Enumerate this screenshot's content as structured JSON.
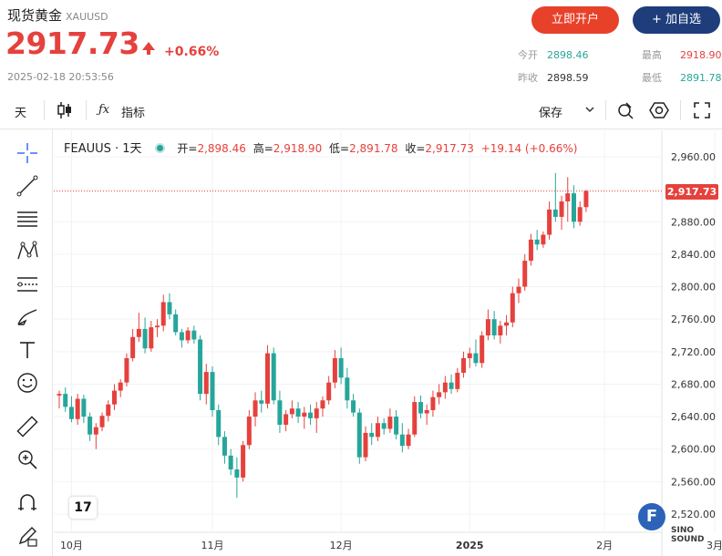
{
  "header": {
    "name": "现货黄金",
    "symbol": "XAUUSD",
    "price": "2917.73",
    "change_pct": "+0.66%",
    "timestamp": "2025-02-18 20:53:56",
    "open_account_label": "立即开户",
    "add_watch_label": "+ 加自选",
    "stats": {
      "open_label": "今开",
      "open_value": "2898.46",
      "prev_close_label": "昨收",
      "prev_close_value": "2898.59",
      "high_label": "最高",
      "high_value": "2918.90",
      "low_label": "最低",
      "low_value": "2891.78"
    }
  },
  "toolbar": {
    "interval_label": "天",
    "indicators_label": "指标",
    "save_label": "保存",
    "candles_icon": "candles-icon",
    "fx_icon": "fx-icon"
  },
  "legend": {
    "instrument": "FEAUUS · 1天",
    "open_label": "开=",
    "open": "2,898.46",
    "high_label": "高=",
    "high": "2,918.90",
    "low_label": "低=",
    "low": "2,891.78",
    "close_label": "收=",
    "close": "2,917.73",
    "change": "+19.14 (+0.66%)"
  },
  "last_price_tag": "2,917.73",
  "tv_logo": "17",
  "watermark": {
    "letter": "F",
    "text": "SINO SOUND"
  },
  "colors": {
    "up": "#e5413d",
    "down": "#26a69a",
    "accent": "#e8412a",
    "navy": "#1e3d7a"
  },
  "chart_data": {
    "type": "candlestick",
    "y_ticks": [
      "2,960.00",
      "2,920.00",
      "2,880.00",
      "2,840.00",
      "2,800.00",
      "2,760.00",
      "2,720.00",
      "2,680.00",
      "2,640.00",
      "2,600.00",
      "2,560.00",
      "2,520.00"
    ],
    "ylim": [
      2500,
      2980
    ],
    "x_ticks": [
      {
        "label": "10月",
        "index": 2
      },
      {
        "label": "11月",
        "index": 25
      },
      {
        "label": "12月",
        "index": 46
      },
      {
        "label": "2025",
        "index": 67
      },
      {
        "label": "2月",
        "index": 89
      },
      {
        "label": "3月",
        "index": 107
      }
    ],
    "last_price": 2917.73,
    "candles": [
      [
        2666,
        2672,
        2650,
        2668
      ],
      [
        2668,
        2676,
        2646,
        2652
      ],
      [
        2652,
        2665,
        2633,
        2637
      ],
      [
        2637,
        2668,
        2630,
        2662
      ],
      [
        2662,
        2667,
        2632,
        2640
      ],
      [
        2640,
        2645,
        2610,
        2618
      ],
      [
        2618,
        2632,
        2600,
        2627
      ],
      [
        2627,
        2645,
        2622,
        2641
      ],
      [
        2641,
        2660,
        2634,
        2655
      ],
      [
        2655,
        2680,
        2648,
        2672
      ],
      [
        2672,
        2686,
        2664,
        2682
      ],
      [
        2682,
        2718,
        2677,
        2712
      ],
      [
        2712,
        2748,
        2708,
        2738
      ],
      [
        2738,
        2768,
        2732,
        2748
      ],
      [
        2748,
        2762,
        2718,
        2724
      ],
      [
        2724,
        2758,
        2720,
        2750
      ],
      [
        2750,
        2760,
        2738,
        2752
      ],
      [
        2752,
        2790,
        2745,
        2781
      ],
      [
        2781,
        2792,
        2760,
        2766
      ],
      [
        2766,
        2772,
        2740,
        2744
      ],
      [
        2744,
        2748,
        2725,
        2734
      ],
      [
        2734,
        2750,
        2730,
        2746
      ],
      [
        2746,
        2752,
        2730,
        2735
      ],
      [
        2735,
        2740,
        2660,
        2668
      ],
      [
        2668,
        2705,
        2655,
        2695
      ],
      [
        2695,
        2702,
        2640,
        2648
      ],
      [
        2648,
        2655,
        2605,
        2615
      ],
      [
        2615,
        2622,
        2582,
        2592
      ],
      [
        2592,
        2600,
        2568,
        2575
      ],
      [
        2575,
        2590,
        2540,
        2565
      ],
      [
        2565,
        2610,
        2560,
        2605
      ],
      [
        2605,
        2648,
        2600,
        2640
      ],
      [
        2640,
        2670,
        2628,
        2660
      ],
      [
        2660,
        2672,
        2645,
        2656
      ],
      [
        2656,
        2728,
        2650,
        2718
      ],
      [
        2718,
        2725,
        2655,
        2660
      ],
      [
        2660,
        2672,
        2620,
        2630
      ],
      [
        2630,
        2648,
        2622,
        2643
      ],
      [
        2643,
        2660,
        2638,
        2650
      ],
      [
        2650,
        2658,
        2632,
        2640
      ],
      [
        2640,
        2652,
        2625,
        2645
      ],
      [
        2645,
        2655,
        2630,
        2638
      ],
      [
        2638,
        2658,
        2620,
        2650
      ],
      [
        2650,
        2665,
        2640,
        2660
      ],
      [
        2660,
        2690,
        2655,
        2682
      ],
      [
        2682,
        2722,
        2675,
        2712
      ],
      [
        2712,
        2725,
        2680,
        2688
      ],
      [
        2688,
        2700,
        2650,
        2660
      ],
      [
        2660,
        2668,
        2640,
        2645
      ],
      [
        2645,
        2650,
        2582,
        2590
      ],
      [
        2590,
        2628,
        2585,
        2620
      ],
      [
        2620,
        2632,
        2605,
        2615
      ],
      [
        2615,
        2640,
        2610,
        2632
      ],
      [
        2632,
        2638,
        2618,
        2625
      ],
      [
        2625,
        2650,
        2620,
        2640
      ],
      [
        2640,
        2648,
        2612,
        2618
      ],
      [
        2618,
        2632,
        2596,
        2604
      ],
      [
        2604,
        2625,
        2600,
        2618
      ],
      [
        2618,
        2665,
        2615,
        2658
      ],
      [
        2658,
        2666,
        2638,
        2644
      ],
      [
        2644,
        2655,
        2630,
        2648
      ],
      [
        2648,
        2672,
        2640,
        2664
      ],
      [
        2664,
        2680,
        2655,
        2670
      ],
      [
        2670,
        2690,
        2662,
        2682
      ],
      [
        2682,
        2692,
        2668,
        2674
      ],
      [
        2674,
        2700,
        2670,
        2694
      ],
      [
        2694,
        2720,
        2688,
        2712
      ],
      [
        2712,
        2725,
        2700,
        2718
      ],
      [
        2718,
        2735,
        2702,
        2706
      ],
      [
        2706,
        2745,
        2700,
        2740
      ],
      [
        2740,
        2772,
        2734,
        2760
      ],
      [
        2760,
        2770,
        2735,
        2740
      ],
      [
        2740,
        2758,
        2730,
        2752
      ],
      [
        2752,
        2765,
        2740,
        2756
      ],
      [
        2756,
        2800,
        2750,
        2792
      ],
      [
        2792,
        2810,
        2780,
        2800
      ],
      [
        2800,
        2840,
        2795,
        2832
      ],
      [
        2832,
        2865,
        2826,
        2858
      ],
      [
        2858,
        2870,
        2845,
        2852
      ],
      [
        2852,
        2868,
        2848,
        2864
      ],
      [
        2864,
        2905,
        2858,
        2895
      ],
      [
        2895,
        2940,
        2880,
        2886
      ],
      [
        2886,
        2912,
        2870,
        2905
      ],
      [
        2905,
        2935,
        2880,
        2915
      ],
      [
        2915,
        2925,
        2872,
        2880
      ],
      [
        2880,
        2905,
        2875,
        2898
      ],
      [
        2898,
        2919,
        2892,
        2918
      ]
    ]
  }
}
